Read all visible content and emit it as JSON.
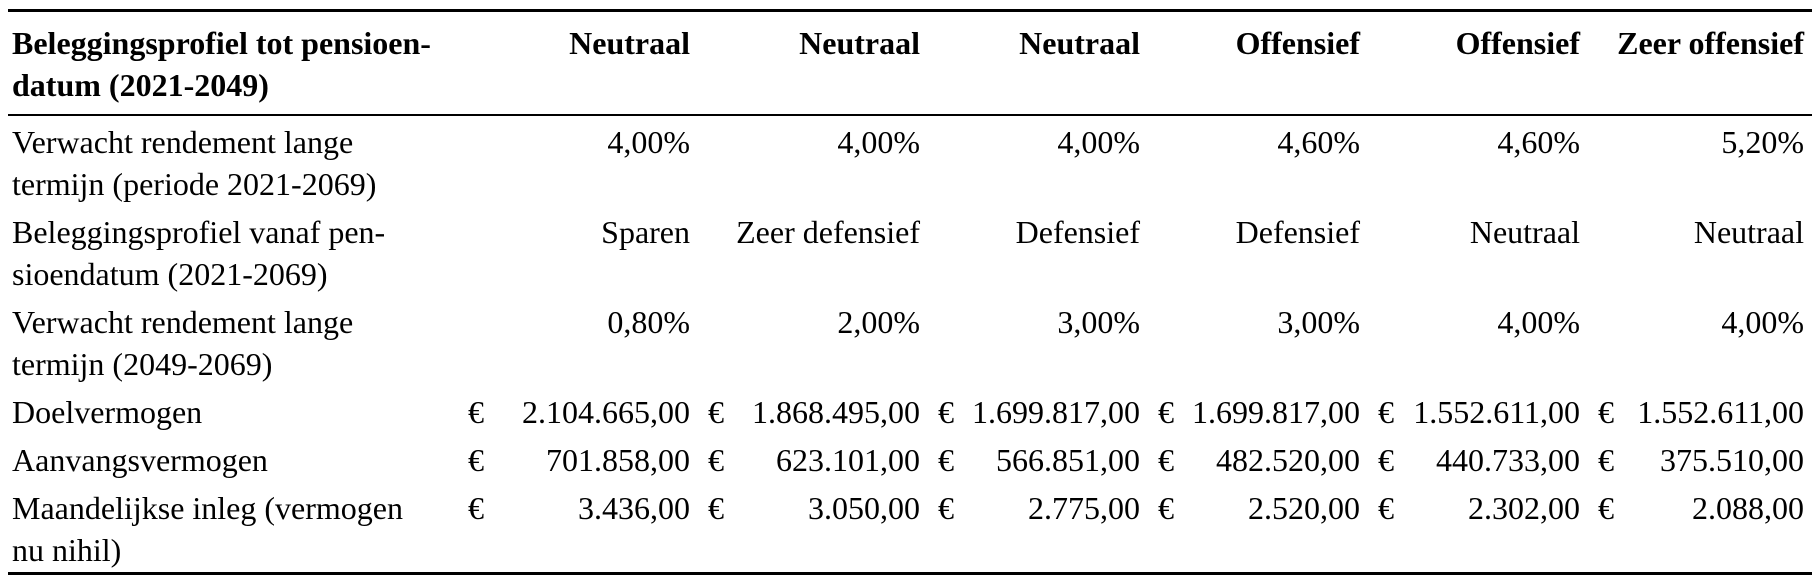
{
  "table": {
    "currency_symbol": "€",
    "header": {
      "label_lines": [
        "Beleggingsprofiel tot pensioen-",
        "datum (2021-2049)"
      ],
      "columns": [
        "Neutraal",
        "Neutraal",
        "Neutraal",
        "Offensief",
        "Offensief",
        "Zeer offensief"
      ]
    },
    "rows": [
      {
        "label_lines": [
          "Verwacht rendement lange",
          "termijn (periode 2021-2069)"
        ],
        "type": "percent",
        "values": [
          "4,00%",
          "4,00%",
          "4,00%",
          "4,60%",
          "4,60%",
          "5,20%"
        ]
      },
      {
        "label_lines": [
          "Beleggingsprofiel vanaf pen-",
          "sioendatum (2021-2069)"
        ],
        "type": "text",
        "values": [
          "Sparen",
          "Zeer defensief",
          "Defensief",
          "Defensief",
          "Neutraal",
          "Neutraal"
        ]
      },
      {
        "label_lines": [
          "Verwacht rendement lange",
          "termijn (2049-2069)"
        ],
        "type": "percent",
        "values": [
          "0,80%",
          "2,00%",
          "3,00%",
          "3,00%",
          "4,00%",
          "4,00%"
        ]
      },
      {
        "label_lines": [
          "Doelvermogen"
        ],
        "type": "currency",
        "values": [
          "2.104.665,00",
          "1.868.495,00",
          "1.699.817,00",
          "1.699.817,00",
          "1.552.611,00",
          "1.552.611,00"
        ]
      },
      {
        "label_lines": [
          "Aanvangsvermogen"
        ],
        "type": "currency",
        "values": [
          "701.858,00",
          "623.101,00",
          "566.851,00",
          "482.520,00",
          "440.733,00",
          "375.510,00"
        ]
      },
      {
        "label_lines": [
          "Maandelijkse inleg (vermogen",
          "nu nihil)"
        ],
        "type": "currency",
        "values": [
          "3.436,00",
          "3.050,00",
          "2.775,00",
          "2.520,00",
          "2.302,00",
          "2.088,00"
        ]
      }
    ]
  }
}
